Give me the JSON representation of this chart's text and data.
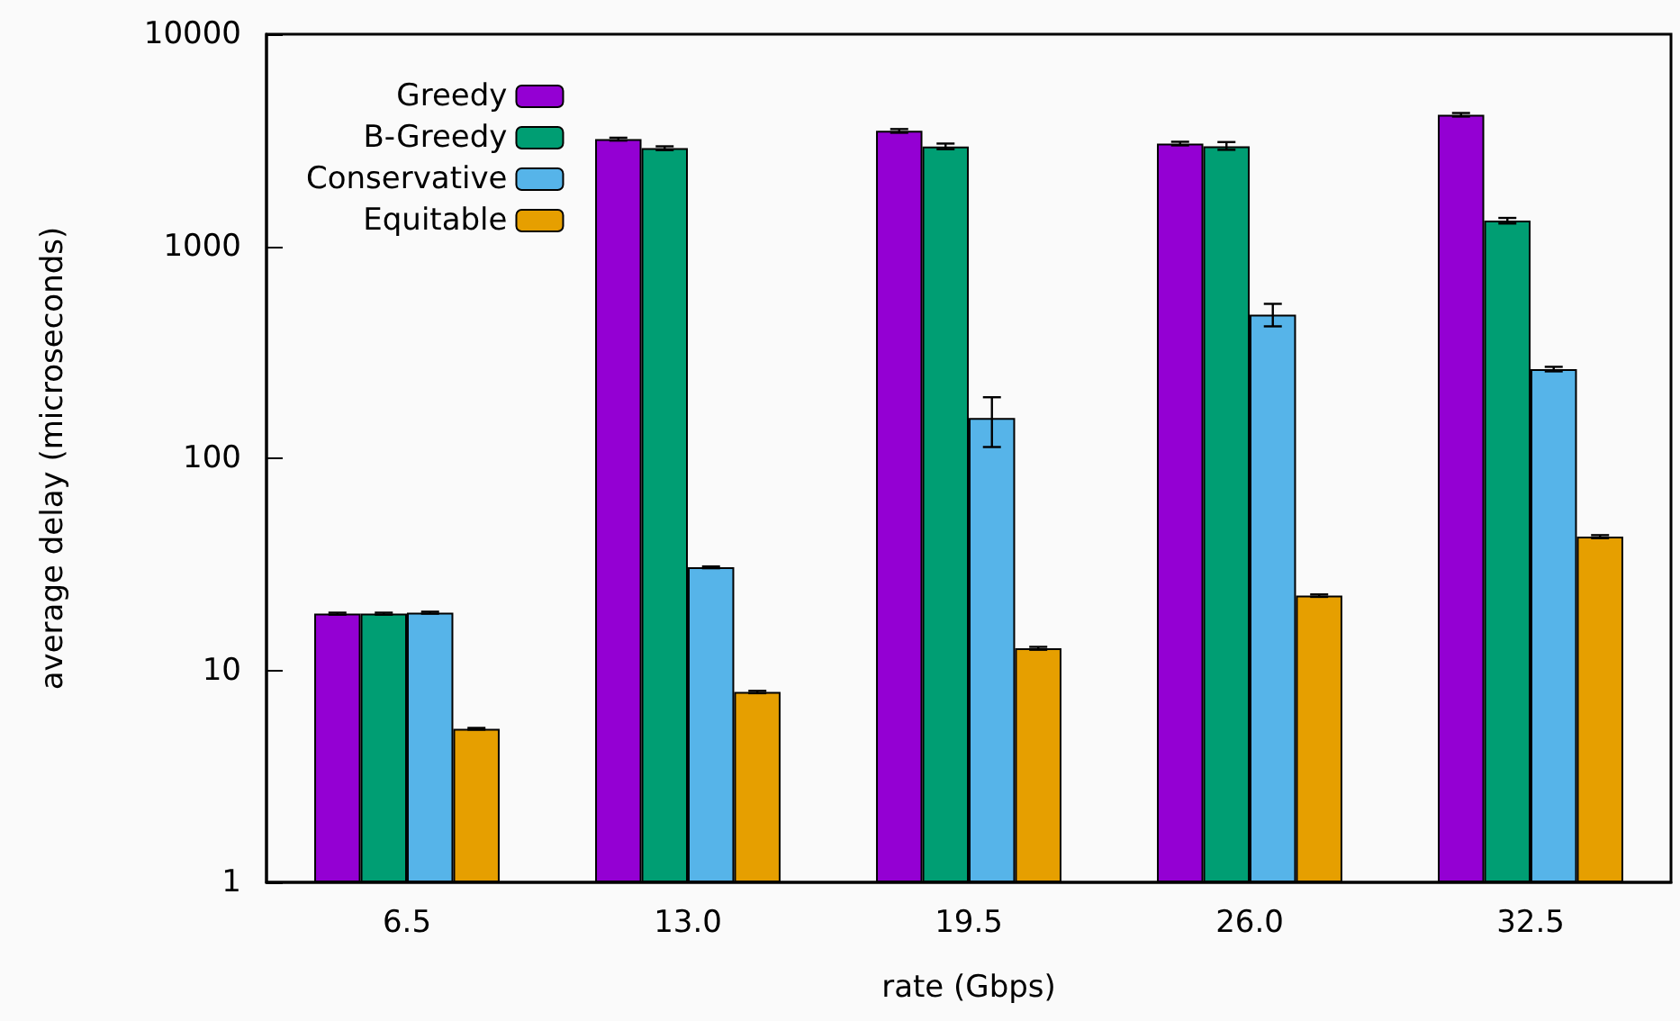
{
  "chart_data": {
    "type": "bar",
    "xlabel": "rate (Gbps)",
    "ylabel": "average delay (microseconds)",
    "categories": [
      "6.5",
      "13.0",
      "19.5",
      "26.0",
      "32.5"
    ],
    "series": [
      {
        "name": "Greedy",
        "color": "#9400d3",
        "values": [
          18.5,
          3200,
          3500,
          3050,
          4170
        ],
        "errors": [
          [
            18.3,
            18.7
          ],
          [
            3150,
            3250
          ],
          [
            3430,
            3570
          ],
          [
            2990,
            3110
          ],
          [
            4090,
            4250
          ]
        ]
      },
      {
        "name": "B-Greedy",
        "color": "#009e73",
        "values": [
          18.5,
          2900,
          2950,
          2960,
          1320
        ],
        "errors": [
          [
            18.3,
            18.7
          ],
          [
            2840,
            2960
          ],
          [
            2870,
            3050
          ],
          [
            2850,
            3100
          ],
          [
            1280,
            1360
          ]
        ]
      },
      {
        "name": "Conservative",
        "color": "#56b4e9",
        "values": [
          18.7,
          30.6,
          155,
          476,
          263
        ],
        "errors": [
          [
            18.5,
            18.9
          ],
          [
            30.3,
            30.9
          ],
          [
            113,
            194
          ],
          [
            419,
            535
          ],
          [
            257,
            270
          ]
        ]
      },
      {
        "name": "Equitable",
        "color": "#e69f00",
        "values": [
          5.3,
          7.9,
          12.7,
          22.5,
          42.7
        ],
        "errors": [
          [
            5.25,
            5.35
          ],
          [
            7.8,
            8.0
          ],
          [
            12.5,
            12.9
          ],
          [
            22.2,
            22.8
          ],
          [
            42.0,
            43.4
          ]
        ]
      }
    ],
    "ylim": [
      1,
      10000
    ],
    "yticks": [
      1,
      10,
      100,
      1000,
      10000
    ],
    "log": true,
    "grid": false,
    "legend": "top left"
  }
}
